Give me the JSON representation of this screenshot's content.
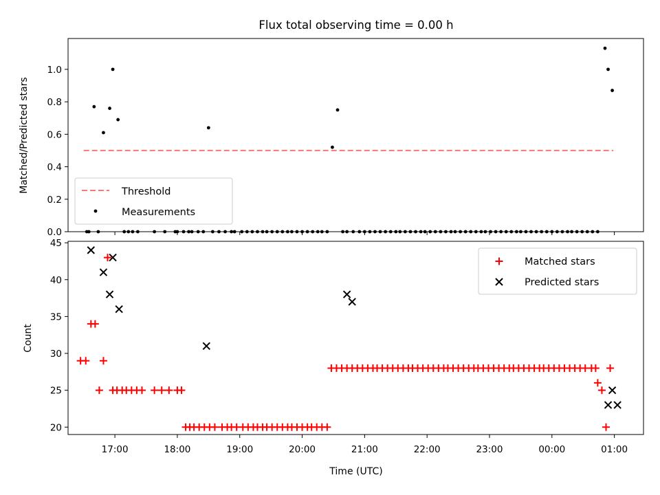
{
  "figure": {
    "title": "Flux total observing time = 0.00 h"
  },
  "colors": {
    "threshold": "#f87777",
    "measurement": "#000000",
    "matched": "#ff0000",
    "predicted": "#000000"
  },
  "chart_data": [
    {
      "type": "scatter",
      "title": "Flux total observing time = 0.00 h",
      "xlabel": "",
      "ylabel": "Matched/Predicted stars",
      "xlim": [
        "16:15",
        "01:28"
      ],
      "ylim": [
        0,
        1.19
      ],
      "yticks": [
        "0.0",
        "0.2",
        "0.4",
        "0.6",
        "0.8",
        "1.0"
      ],
      "legend_position": "lower-left",
      "series": [
        {
          "name": "Threshold",
          "kind": "dashed-line",
          "x": [
            "16:30",
            "00:59"
          ],
          "y": [
            0.5,
            0.5
          ]
        },
        {
          "name": "Measurements",
          "kind": "dots",
          "x": [
            "16:33",
            "16:35",
            "16:40",
            "16:44",
            "16:49",
            "16:55",
            "16:58",
            "17:03",
            "17:09",
            "17:13",
            "17:17",
            "17:22",
            "17:38",
            "17:48",
            "17:58",
            "18:00",
            "18:06",
            "18:11",
            "18:14",
            "18:20",
            "18:25",
            "18:30",
            "18:34",
            "18:40",
            "18:46",
            "18:52",
            "18:55",
            "19:02",
            "19:07",
            "19:12",
            "19:17",
            "19:22",
            "19:26",
            "19:31",
            "19:36",
            "19:41",
            "19:46",
            "19:50",
            "19:55",
            "20:00",
            "20:05",
            "20:10",
            "20:15",
            "20:19",
            "20:24",
            "20:29",
            "20:34",
            "20:39",
            "20:43",
            "20:49",
            "20:55",
            "21:00",
            "21:05",
            "21:10",
            "21:15",
            "21:20",
            "21:25",
            "21:30",
            "21:34",
            "21:39",
            "21:44",
            "21:49",
            "21:54",
            "21:58",
            "22:03",
            "22:08",
            "22:13",
            "22:18",
            "22:23",
            "22:27",
            "22:32",
            "22:37",
            "22:42",
            "22:47",
            "22:52",
            "22:56",
            "23:01",
            "23:06",
            "23:11",
            "23:16",
            "23:21",
            "23:26",
            "23:30",
            "23:35",
            "23:40",
            "23:45",
            "23:50",
            "23:55",
            "00:00",
            "00:05",
            "00:10",
            "00:15",
            "00:19",
            "00:24",
            "00:29",
            "00:34",
            "00:39",
            "00:44",
            "00:51",
            "00:54",
            "00:58"
          ],
          "y": [
            0,
            0,
            0.77,
            0,
            0.61,
            0.76,
            1.0,
            0.69,
            0,
            0,
            0,
            0,
            0,
            0,
            0,
            0,
            0,
            0,
            0,
            0,
            0,
            0.64,
            0,
            0,
            0,
            0,
            0,
            0,
            0,
            0,
            0,
            0,
            0,
            0,
            0,
            0,
            0,
            0,
            0,
            0,
            0,
            0,
            0,
            0,
            0,
            0.52,
            0.75,
            0,
            0,
            0,
            0,
            0,
            0,
            0,
            0,
            0,
            0,
            0,
            0,
            0,
            0,
            0,
            0,
            0,
            0,
            0,
            0,
            0,
            0,
            0,
            0,
            0,
            0,
            0,
            0,
            0,
            0,
            0,
            0,
            0,
            0,
            0,
            0,
            0,
            0,
            0,
            0,
            0,
            0,
            0,
            0,
            0,
            0,
            0,
            0,
            0,
            0,
            0,
            1.13,
            1.0,
            0.87
          ]
        }
      ]
    },
    {
      "type": "scatter",
      "title": "",
      "xlabel": "Time (UTC)",
      "ylabel": "Count",
      "xlim": [
        "16:15",
        "01:28"
      ],
      "ylim": [
        19,
        45.2
      ],
      "yticks": [
        "20",
        "25",
        "30",
        "35",
        "40",
        "45"
      ],
      "xticks": [
        "17:00",
        "18:00",
        "19:00",
        "20:00",
        "21:00",
        "22:00",
        "23:00",
        "00:00",
        "01:00"
      ],
      "legend_position": "upper-right",
      "series": [
        {
          "name": "Matched stars",
          "marker": "plus",
          "x": [
            "16:27",
            "16:32",
            "16:37",
            "16:41",
            "16:45",
            "16:49",
            "16:53",
            "16:58",
            "17:02",
            "17:07",
            "17:11",
            "17:16",
            "17:21",
            "17:26",
            "17:38",
            "17:45",
            "17:52",
            "18:00",
            "18:04",
            "18:08",
            "18:12",
            "18:16",
            "18:21",
            "18:26",
            "18:31",
            "18:36",
            "18:43",
            "18:48",
            "18:52",
            "18:57",
            "19:03",
            "19:08",
            "19:13",
            "19:17",
            "19:22",
            "19:26",
            "19:31",
            "19:36",
            "19:41",
            "19:46",
            "19:50",
            "19:55",
            "20:00",
            "20:05",
            "20:09",
            "20:14",
            "20:19",
            "20:24",
            "20:28",
            "20:33",
            "20:38",
            "20:43",
            "20:48",
            "20:53",
            "20:58",
            "21:03",
            "21:08",
            "21:12",
            "21:17",
            "21:22",
            "21:27",
            "21:32",
            "21:37",
            "21:42",
            "21:46",
            "21:51",
            "21:56",
            "22:01",
            "22:06",
            "22:11",
            "22:16",
            "22:20",
            "22:25",
            "22:30",
            "22:35",
            "22:40",
            "22:45",
            "22:49",
            "22:54",
            "22:59",
            "23:04",
            "23:09",
            "23:14",
            "23:19",
            "23:23",
            "23:28",
            "23:33",
            "23:38",
            "23:43",
            "23:48",
            "23:52",
            "23:57",
            "00:02",
            "00:07",
            "00:12",
            "00:17",
            "00:22",
            "00:27",
            "00:32",
            "00:38",
            "00:42",
            "00:44",
            "00:48",
            "00:52",
            "00:56"
          ],
          "y": [
            29,
            29,
            34,
            34,
            25,
            29,
            43,
            25,
            25,
            25,
            25,
            25,
            25,
            25,
            25,
            25,
            25,
            25,
            25,
            20,
            20,
            20,
            20,
            20,
            20,
            20,
            20,
            20,
            20,
            20,
            20,
            20,
            20,
            20,
            20,
            20,
            20,
            20,
            20,
            20,
            20,
            20,
            20,
            20,
            20,
            20,
            20,
            20,
            28,
            28,
            28,
            28,
            28,
            28,
            28,
            28,
            28,
            28,
            28,
            28,
            28,
            28,
            28,
            28,
            28,
            28,
            28,
            28,
            28,
            28,
            28,
            28,
            28,
            28,
            28,
            28,
            28,
            28,
            28,
            28,
            28,
            28,
            28,
            28,
            28,
            28,
            28,
            28,
            28,
            28,
            28,
            28,
            28,
            28,
            28,
            28,
            28,
            28,
            28,
            28,
            28,
            26,
            25,
            20,
            28
          ]
        },
        {
          "name": "Predicted stars",
          "marker": "x",
          "x": [
            "16:37",
            "16:49",
            "16:55",
            "16:58",
            "17:04",
            "18:28",
            "20:43",
            "20:48",
            "00:54",
            "00:58",
            "01:03"
          ],
          "y": [
            44,
            41,
            38,
            43,
            36,
            31,
            38,
            37,
            23,
            25,
            23
          ]
        }
      ]
    }
  ]
}
